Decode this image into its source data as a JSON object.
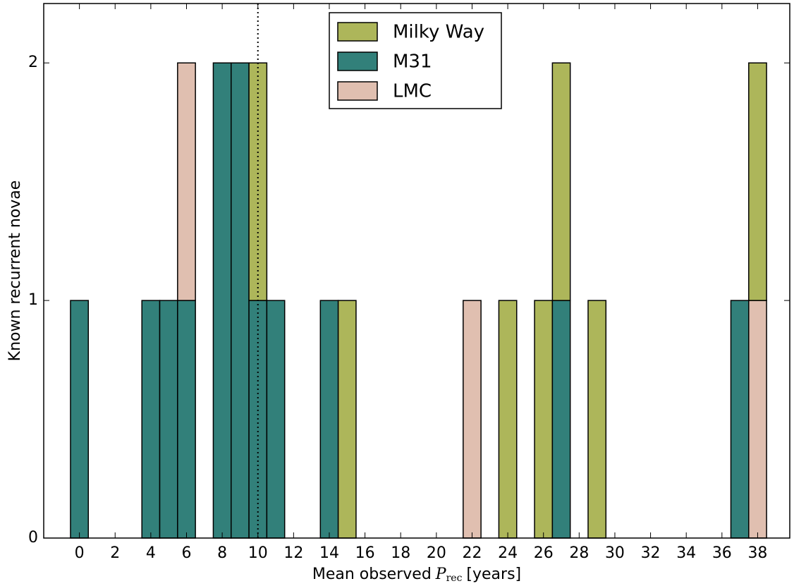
{
  "chart_data": {
    "type": "histogram",
    "xlabel": {
      "prefix": "Mean observed",
      "symbol": "P",
      "subscript": "rec",
      "suffix": "[years]"
    },
    "ylabel": "Known recurrent novae",
    "bins": [
      -0.5,
      0.5,
      1.5,
      2.5,
      3.5,
      4.5,
      5.5,
      6.5,
      7.5,
      8.5,
      9.5,
      10.5,
      11.5,
      12.5,
      13.5,
      14.5,
      15.5,
      16.5,
      17.5,
      18.5,
      19.5,
      20.5,
      21.5,
      22.5,
      23.5,
      24.5,
      25.5,
      26.5,
      27.5,
      28.5,
      29.5,
      30.5,
      31.5,
      32.5,
      33.5,
      34.5,
      35.5,
      36.5,
      37.5,
      38.5
    ],
    "series": [
      {
        "name": "Milky Way",
        "color": "#adb65a",
        "values": [
          0,
          0,
          0,
          0,
          0,
          0,
          0,
          0,
          0,
          0,
          1,
          0,
          0,
          0,
          0,
          1,
          0,
          0,
          0,
          0,
          0,
          0,
          0,
          0,
          1,
          0,
          1,
          1,
          0,
          1,
          0,
          0,
          0,
          0,
          0,
          0,
          0,
          0,
          1
        ]
      },
      {
        "name": "M31",
        "color": "#32807a",
        "values": [
          1,
          0,
          0,
          0,
          1,
          1,
          1,
          0,
          2,
          2,
          1,
          1,
          0,
          0,
          1,
          0,
          0,
          0,
          0,
          0,
          0,
          0,
          0,
          0,
          0,
          0,
          0,
          1,
          0,
          0,
          0,
          0,
          0,
          0,
          0,
          0,
          0,
          1,
          0
        ]
      },
      {
        "name": "LMC",
        "color": "#e0bfb0",
        "values": [
          0,
          0,
          0,
          0,
          0,
          0,
          1,
          0,
          0,
          0,
          0,
          0,
          0,
          0,
          0,
          0,
          0,
          0,
          0,
          0,
          0,
          0,
          1,
          0,
          0,
          0,
          0,
          0,
          0,
          0,
          0,
          0,
          0,
          0,
          0,
          0,
          0,
          0,
          1
        ]
      }
    ],
    "vline": 10,
    "xlim": [
      -2,
      39.8
    ],
    "xticks": [
      0,
      2,
      4,
      6,
      8,
      10,
      12,
      14,
      16,
      18,
      20,
      22,
      24,
      26,
      28,
      30,
      32,
      34,
      36,
      38
    ],
    "ylim": [
      0,
      2.25
    ],
    "yticks": [
      0,
      1,
      2
    ],
    "legend": "upper center"
  }
}
